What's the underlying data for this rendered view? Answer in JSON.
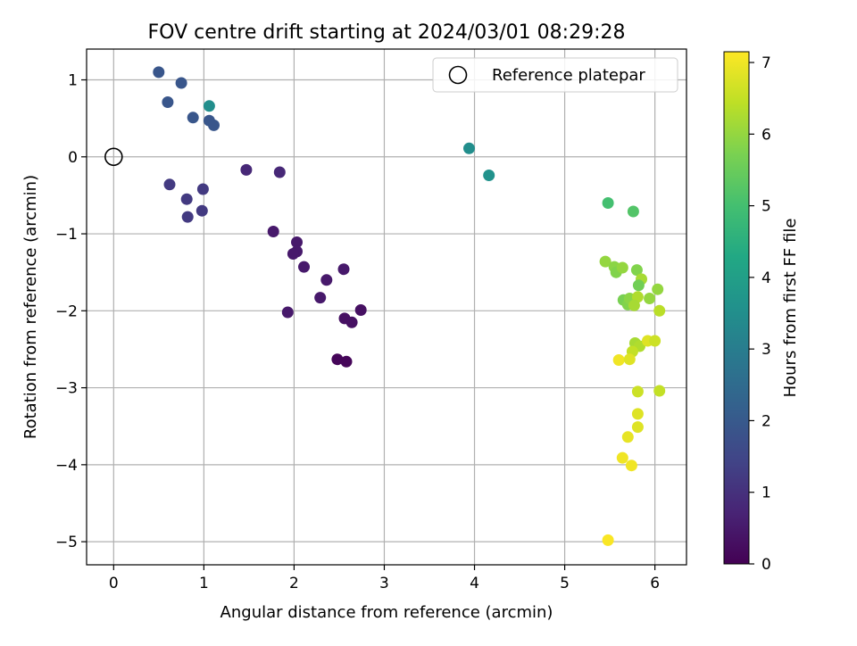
{
  "chart_data": {
    "type": "scatter",
    "title": "FOV centre drift starting at 2024/03/01 08:29:28",
    "xlabel": "Angular distance from reference (arcmin)",
    "ylabel": "Rotation from reference (arcmin)",
    "xlim": [
      -0.3,
      6.35
    ],
    "ylim": [
      -5.3,
      1.4
    ],
    "grid": true,
    "xticks": [
      0,
      1,
      2,
      3,
      4,
      5,
      6
    ],
    "yticks": [
      1,
      0,
      -1,
      -2,
      -3,
      -4,
      -5
    ],
    "colorbar": {
      "label": "Hours from first FF file",
      "range": [
        0,
        7.15
      ],
      "ticks": [
        0,
        1,
        2,
        3,
        4,
        5,
        6,
        7
      ],
      "colormap": "viridis"
    },
    "legend": {
      "position": "top-right",
      "entries": [
        "Reference platepar"
      ]
    },
    "reference_point": {
      "x": 0,
      "y": 0
    },
    "points": [
      {
        "x": 0.5,
        "y": 1.1,
        "c": 1.9
      },
      {
        "x": 0.75,
        "y": 0.96,
        "c": 1.9
      },
      {
        "x": 0.6,
        "y": 0.71,
        "c": 1.9
      },
      {
        "x": 0.88,
        "y": 0.51,
        "c": 1.9
      },
      {
        "x": 1.06,
        "y": 0.66,
        "c": 3.5
      },
      {
        "x": 1.06,
        "y": 0.47,
        "c": 1.9
      },
      {
        "x": 1.11,
        "y": 0.41,
        "c": 1.9
      },
      {
        "x": 0.62,
        "y": -0.36,
        "c": 1.2
      },
      {
        "x": 0.81,
        "y": -0.55,
        "c": 1.2
      },
      {
        "x": 0.82,
        "y": -0.78,
        "c": 1.2
      },
      {
        "x": 0.99,
        "y": -0.42,
        "c": 1.2
      },
      {
        "x": 0.98,
        "y": -0.7,
        "c": 1.2
      },
      {
        "x": 1.47,
        "y": -0.17,
        "c": 0.8
      },
      {
        "x": 1.84,
        "y": -0.2,
        "c": 0.8
      },
      {
        "x": 1.77,
        "y": -0.97,
        "c": 0.5
      },
      {
        "x": 2.03,
        "y": -1.11,
        "c": 0.5
      },
      {
        "x": 2.03,
        "y": -1.23,
        "c": 0.5
      },
      {
        "x": 1.99,
        "y": -1.26,
        "c": 0.5
      },
      {
        "x": 2.11,
        "y": -1.43,
        "c": 0.5
      },
      {
        "x": 2.55,
        "y": -1.46,
        "c": 0.5
      },
      {
        "x": 2.36,
        "y": -1.6,
        "c": 0.5
      },
      {
        "x": 2.29,
        "y": -1.83,
        "c": 0.5
      },
      {
        "x": 1.93,
        "y": -2.02,
        "c": 0.5
      },
      {
        "x": 2.74,
        "y": -1.99,
        "c": 0.3
      },
      {
        "x": 2.56,
        "y": -2.1,
        "c": 0.3
      },
      {
        "x": 2.64,
        "y": -2.15,
        "c": 0.3
      },
      {
        "x": 2.48,
        "y": -2.63,
        "c": 0.1
      },
      {
        "x": 2.58,
        "y": -2.66,
        "c": 0.1
      },
      {
        "x": 3.94,
        "y": 0.11,
        "c": 3.5
      },
      {
        "x": 4.16,
        "y": -0.24,
        "c": 3.6
      },
      {
        "x": 5.48,
        "y": -0.6,
        "c": 5.0
      },
      {
        "x": 5.76,
        "y": -0.71,
        "c": 5.2
      },
      {
        "x": 5.45,
        "y": -1.36,
        "c": 6.0
      },
      {
        "x": 5.55,
        "y": -1.43,
        "c": 5.9
      },
      {
        "x": 5.57,
        "y": -1.5,
        "c": 5.8
      },
      {
        "x": 5.64,
        "y": -1.44,
        "c": 6.0
      },
      {
        "x": 5.8,
        "y": -1.47,
        "c": 5.8
      },
      {
        "x": 5.85,
        "y": -1.59,
        "c": 6.2
      },
      {
        "x": 5.82,
        "y": -1.67,
        "c": 5.6
      },
      {
        "x": 6.03,
        "y": -1.72,
        "c": 6.0
      },
      {
        "x": 5.65,
        "y": -1.86,
        "c": 5.7
      },
      {
        "x": 5.7,
        "y": -1.92,
        "c": 5.8
      },
      {
        "x": 5.72,
        "y": -1.84,
        "c": 5.9
      },
      {
        "x": 5.81,
        "y": -1.82,
        "c": 6.3
      },
      {
        "x": 5.77,
        "y": -1.93,
        "c": 6.2
      },
      {
        "x": 5.94,
        "y": -1.84,
        "c": 6.0
      },
      {
        "x": 6.05,
        "y": -2.0,
        "c": 6.4
      },
      {
        "x": 5.78,
        "y": -2.42,
        "c": 6.2
      },
      {
        "x": 5.83,
        "y": -2.46,
        "c": 6.3
      },
      {
        "x": 5.92,
        "y": -2.39,
        "c": 6.8
      },
      {
        "x": 6.0,
        "y": -2.39,
        "c": 6.6
      },
      {
        "x": 5.75,
        "y": -2.53,
        "c": 6.5
      },
      {
        "x": 5.6,
        "y": -2.64,
        "c": 7.0
      },
      {
        "x": 5.72,
        "y": -2.63,
        "c": 6.8
      },
      {
        "x": 5.81,
        "y": -3.05,
        "c": 6.6
      },
      {
        "x": 6.05,
        "y": -3.04,
        "c": 6.5
      },
      {
        "x": 5.81,
        "y": -3.34,
        "c": 6.8
      },
      {
        "x": 5.81,
        "y": -3.51,
        "c": 6.8
      },
      {
        "x": 5.7,
        "y": -3.64,
        "c": 6.9
      },
      {
        "x": 5.64,
        "y": -3.91,
        "c": 7.0
      },
      {
        "x": 5.74,
        "y": -4.01,
        "c": 7.0
      },
      {
        "x": 5.48,
        "y": -4.98,
        "c": 7.1
      }
    ]
  }
}
